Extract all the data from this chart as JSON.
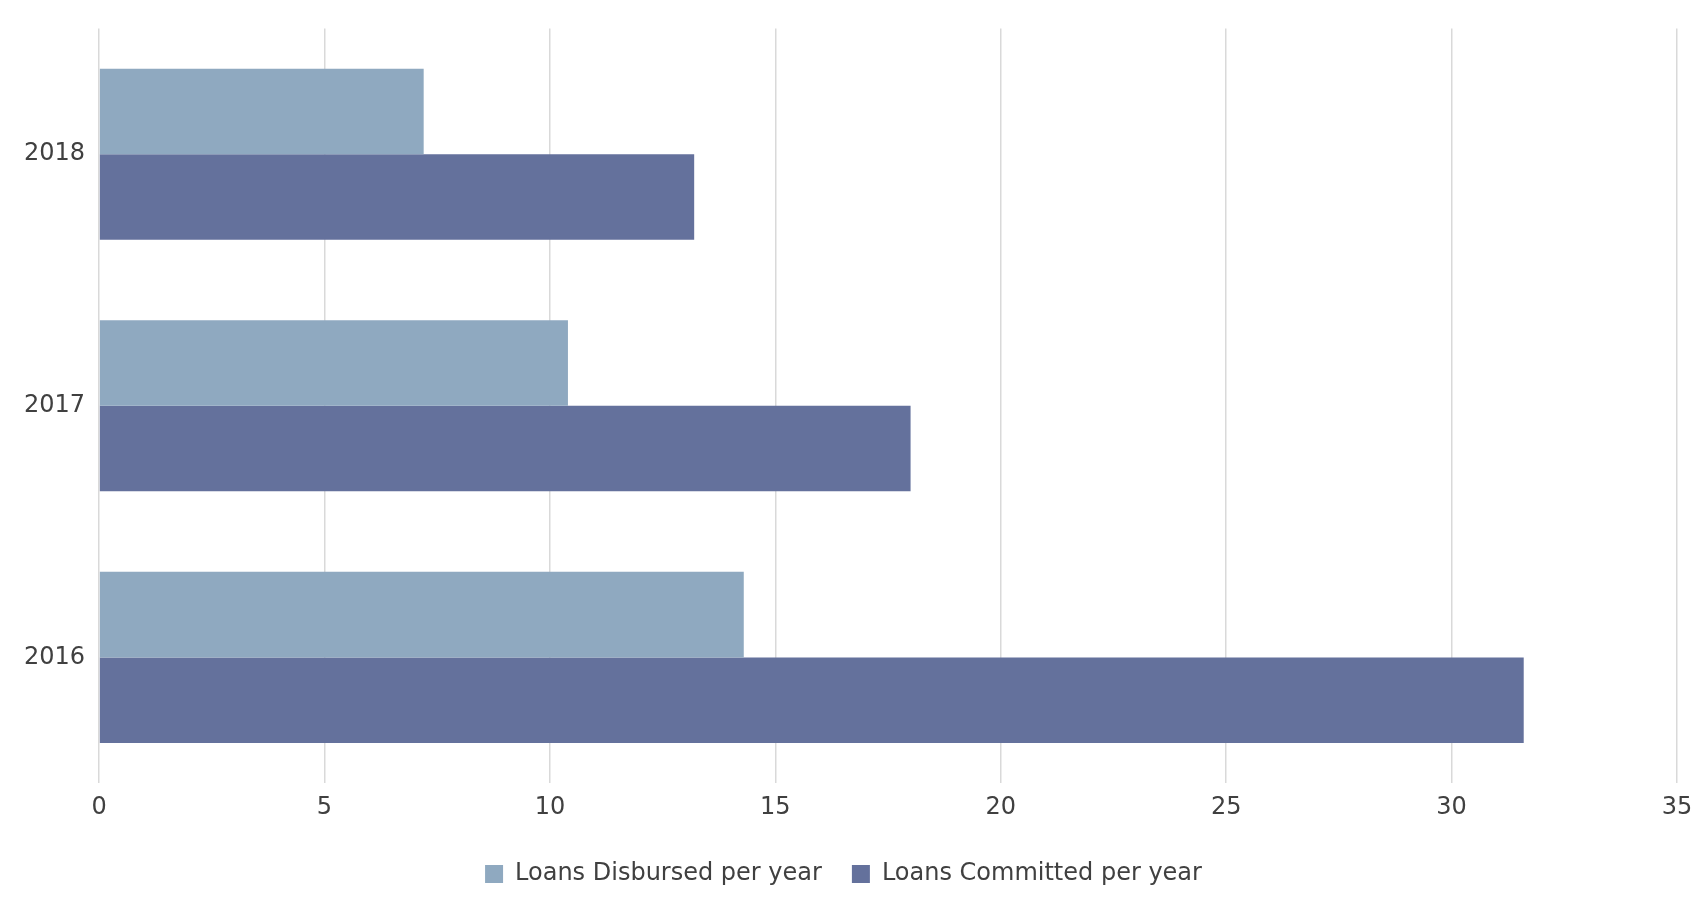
{
  "chart_data": {
    "type": "bar",
    "orientation": "horizontal",
    "categories": [
      "2018",
      "2017",
      "2016"
    ],
    "series": [
      {
        "name": "Loans Disbursed per year",
        "color": "#8fa9c0",
        "values": [
          7.2,
          10.4,
          14.3
        ]
      },
      {
        "name": "Loans Committed per year",
        "color": "#64719c",
        "values": [
          13.2,
          18.0,
          31.6
        ]
      }
    ],
    "xlim": [
      0,
      35
    ],
    "xticks": [
      0,
      5,
      10,
      15,
      20,
      25,
      30,
      35
    ],
    "grid": "x",
    "legend": "bottom"
  }
}
